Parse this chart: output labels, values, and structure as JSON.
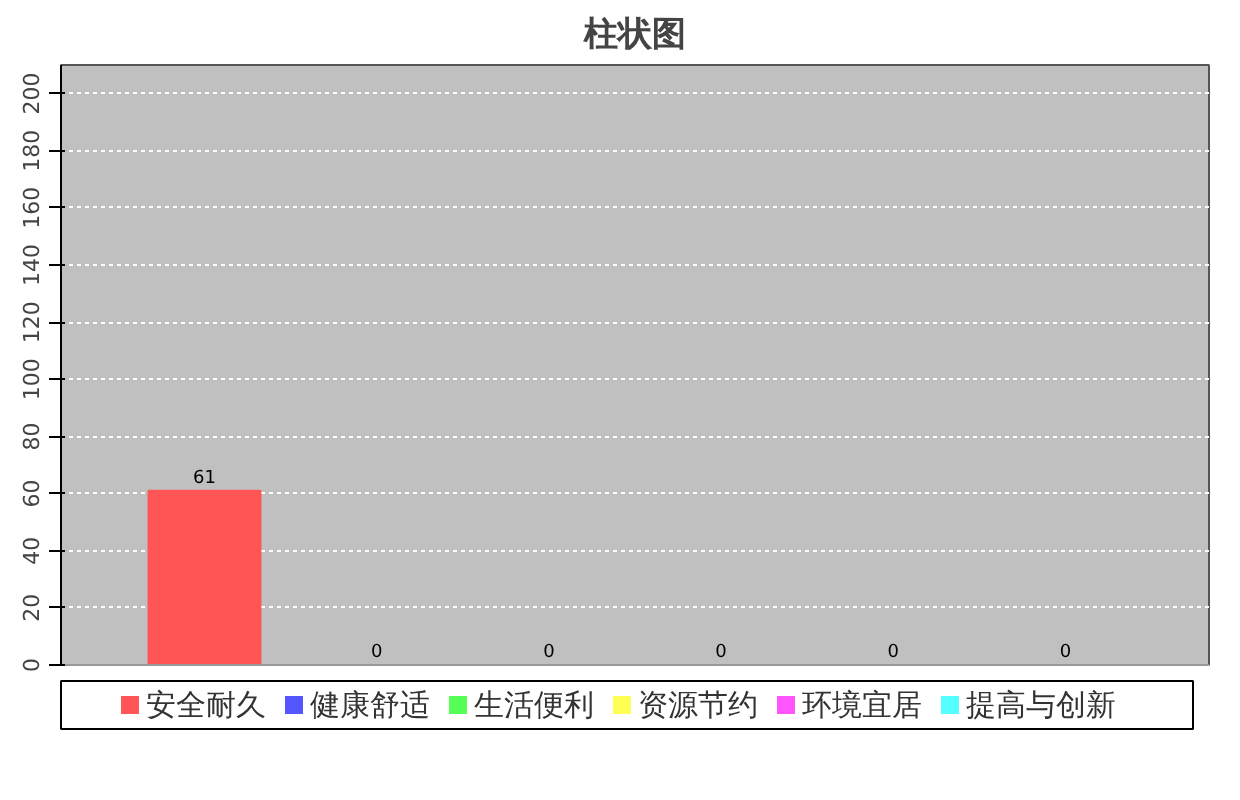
{
  "chart_data": {
    "type": "bar",
    "title": "柱状图",
    "categories": [
      null
    ],
    "series": [
      {
        "name": "安全耐久",
        "color": "#ff5555",
        "values": [
          61
        ]
      },
      {
        "name": "健康舒适",
        "color": "#5555ff",
        "values": [
          0
        ]
      },
      {
        "name": "生活便利",
        "color": "#55ff55",
        "values": [
          0
        ]
      },
      {
        "name": "资源节约",
        "color": "#ffff55",
        "values": [
          0
        ]
      },
      {
        "name": "环境宜居",
        "color": "#ff55ff",
        "values": [
          0
        ]
      },
      {
        "name": "提高与创新",
        "color": "#55ffff",
        "values": [
          0
        ]
      }
    ],
    "ylim": [
      0,
      210
    ],
    "yticks": [
      0,
      20,
      40,
      60,
      80,
      100,
      120,
      140,
      160,
      180,
      200
    ],
    "grid": "y",
    "legend": "bottom",
    "data_labels": true
  }
}
